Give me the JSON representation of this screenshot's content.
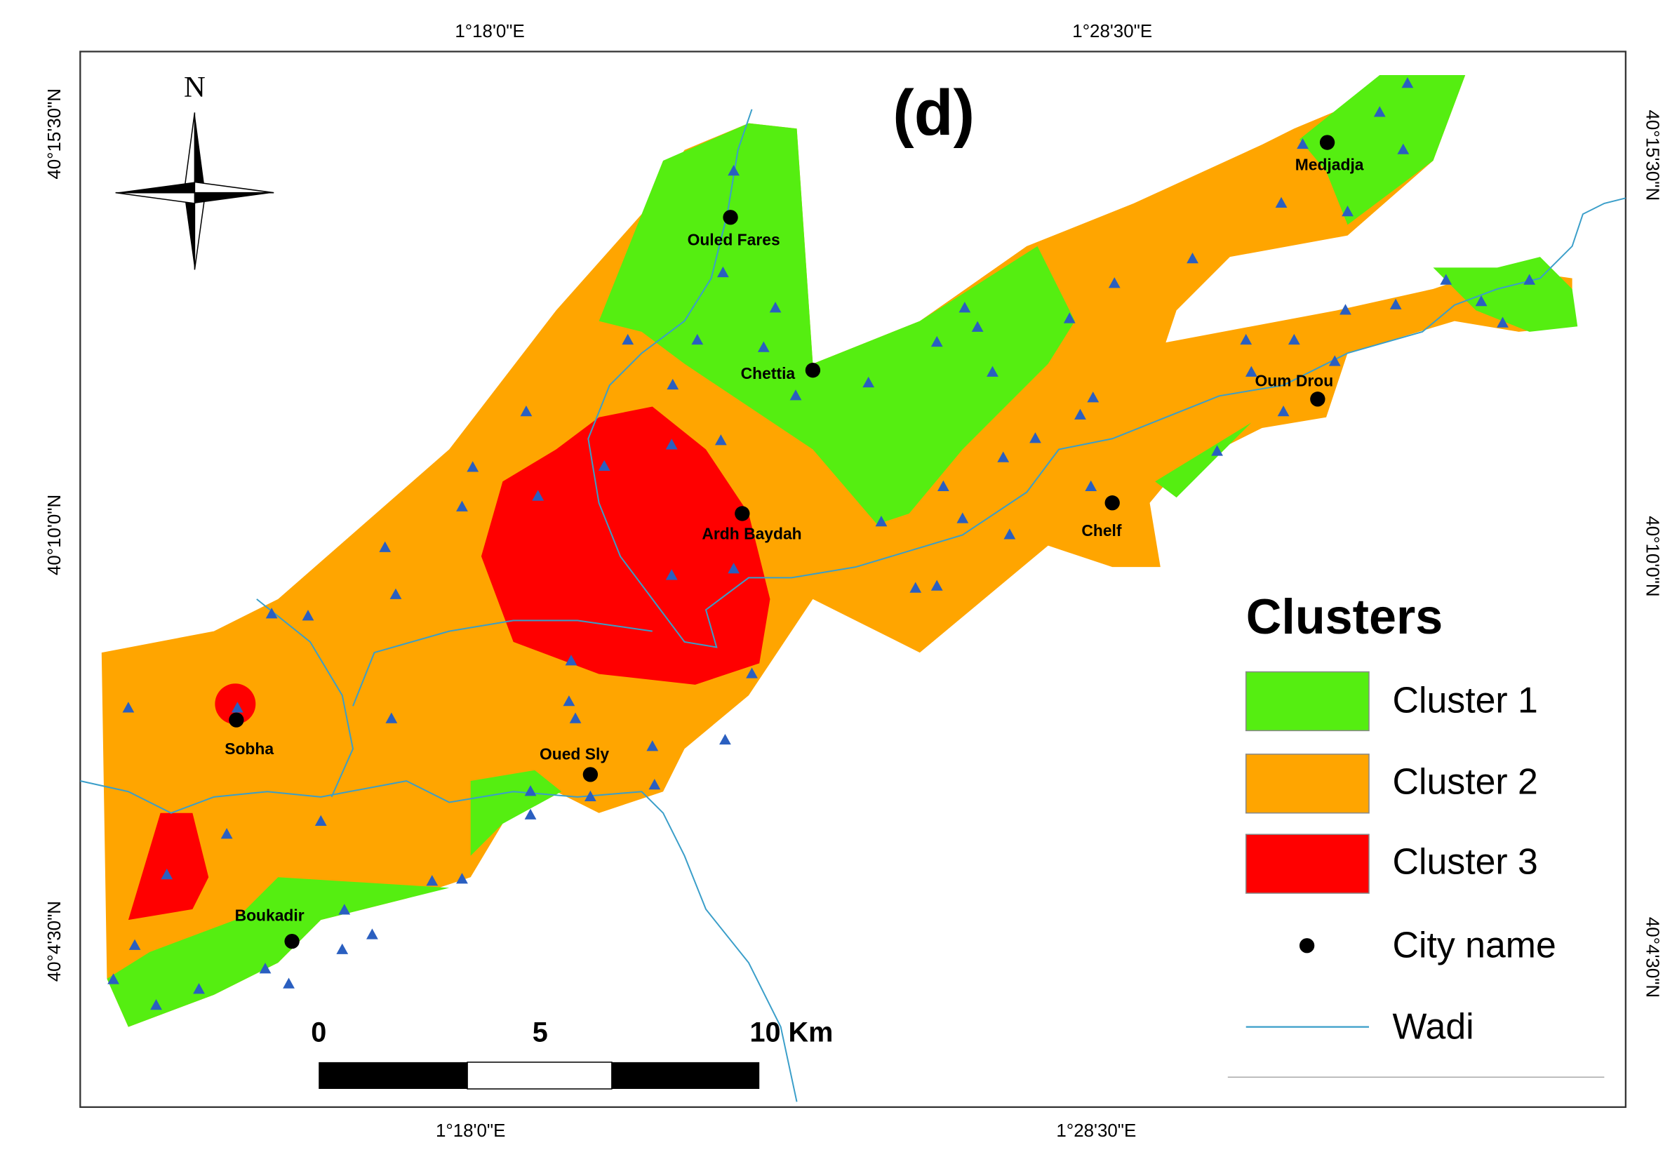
{
  "panel_label": "(d)",
  "north": "N",
  "grid_labels": {
    "top": [
      "1°18'0\"E",
      "1°28'30\"E"
    ],
    "bottom": [
      "1°18'0\"E",
      "1°28'30\"E"
    ],
    "left": [
      "40°15'30\"N",
      "40°10'0\"N",
      "40°4'30\"N"
    ],
    "right": [
      "40°15'30\"N",
      "40°10'0\"N",
      "40°4'30\"N"
    ]
  },
  "cities": [
    "Ouled Fares",
    "Chettia",
    "Ardh Baydah",
    "Medjadja",
    "Oum Drou",
    "Chelf",
    "Sobha",
    "Oued Sly",
    "Boukadir"
  ],
  "legend": {
    "title": "Clusters",
    "items": [
      "Cluster 1",
      "Cluster 2",
      "Cluster 3",
      "City name",
      "Wadi"
    ]
  },
  "scale_bar": {
    "labels": [
      "0",
      "5",
      "10 Km"
    ]
  }
}
